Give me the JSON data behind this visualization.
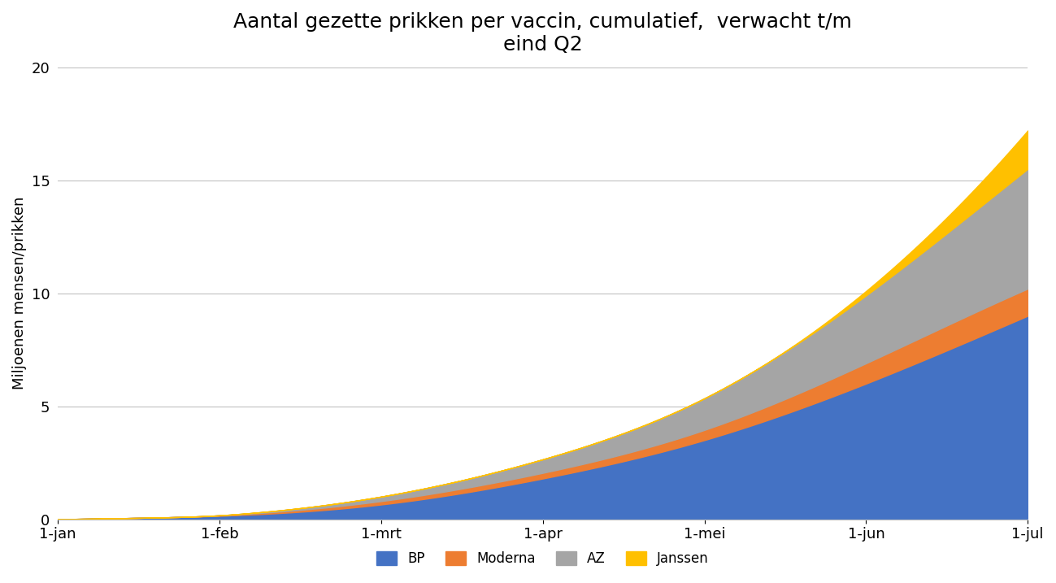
{
  "title": "Aantal gezette prikken per vaccin, cumulatief,  verwacht t/m\neind Q2",
  "ylabel": "Miljoenen mensen/prikken",
  "xlabel": "",
  "ylim": [
    0,
    20
  ],
  "yticks": [
    0,
    5,
    10,
    15,
    20
  ],
  "x_labels": [
    "1-jan",
    "1-feb",
    "1-mrt",
    "1-apr",
    "1-mei",
    "1-jun",
    "1-jul"
  ],
  "legend_labels": [
    "BP",
    "Moderna",
    "AZ",
    "Janssen"
  ],
  "colors": {
    "BP": "#4472C4",
    "Moderna": "#ED7D31",
    "AZ": "#A5A5A5",
    "Janssen": "#FFC000"
  },
  "background_color": "#FFFFFF",
  "series": {
    "BP": [
      0.0,
      0.15,
      0.65,
      1.8,
      3.5,
      6.0,
      9.0
    ],
    "Moderna": [
      0.0,
      0.02,
      0.15,
      0.25,
      0.45,
      0.9,
      1.2
    ],
    "AZ": [
      0.0,
      0.0,
      0.2,
      0.6,
      1.4,
      3.0,
      5.3
    ],
    "Janssen": [
      0.0,
      0.0,
      0.0,
      0.0,
      0.0,
      0.2,
      1.7
    ]
  },
  "title_fontsize": 18,
  "axis_fontsize": 13,
  "tick_fontsize": 13,
  "legend_fontsize": 12,
  "n_interp": 300
}
